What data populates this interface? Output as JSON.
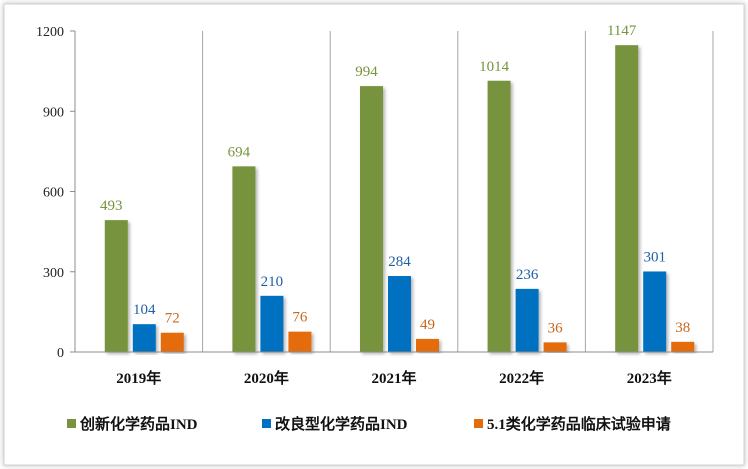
{
  "chart_data": {
    "type": "bar",
    "categories": [
      "2019年",
      "2020年",
      "2021年",
      "2022年",
      "2023年"
    ],
    "series": [
      {
        "name": "创新化学药品IND",
        "values": [
          493,
          694,
          994,
          1014,
          1147
        ],
        "color": "#77933c"
      },
      {
        "name": "改良型化学药品IND",
        "values": [
          104,
          210,
          284,
          236,
          301
        ],
        "color": "#0070c0"
      },
      {
        "name": "5.1类化学药品临床试验申请",
        "values": [
          72,
          76,
          49,
          36,
          38
        ],
        "color": "#e46c0a"
      }
    ],
    "label_colors": [
      "#77933c",
      "#1f5fa8",
      "#c9671b"
    ],
    "title": "",
    "xlabel": "",
    "ylabel": "",
    "ylim": [
      0,
      1200
    ],
    "yticks": [
      0,
      300,
      600,
      900,
      1200
    ],
    "grid": false,
    "category_separators": true,
    "legend_position": "bottom"
  }
}
